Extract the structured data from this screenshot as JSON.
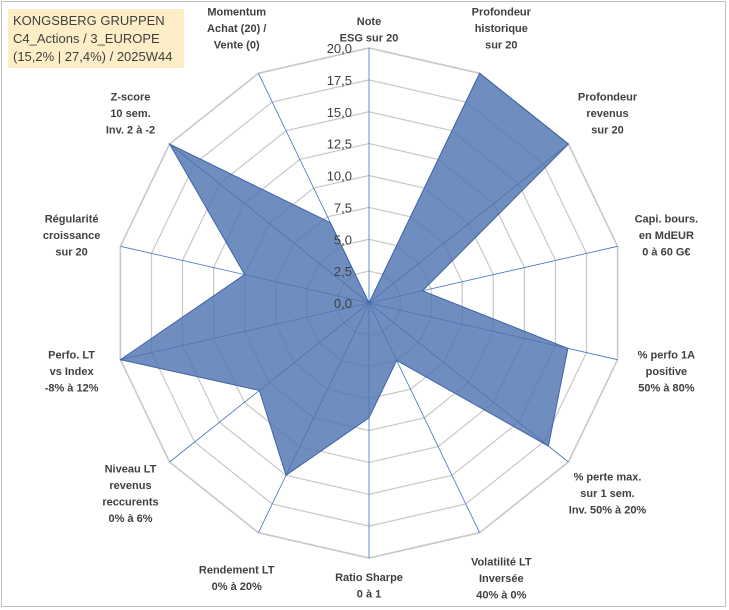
{
  "info": {
    "line1": "KONGSBERG GRUPPEN",
    "line2": "C4_Actions / 3_EUROPE",
    "line3": "(15,2% | 27,4%) / 2025W44"
  },
  "colors": {
    "fill": "#4f74b0",
    "stroke": "#3f65a8",
    "grid": "#c8c8c8",
    "spoke": "#4472c4",
    "infobox": "#fdeec8"
  },
  "chart_data": {
    "type": "radar",
    "rmax": 20,
    "ticks": [
      "0,0",
      "2,5",
      "5,0",
      "7,5",
      "10,0",
      "12,5",
      "15,0",
      "17,5",
      "20,0"
    ],
    "axes": [
      {
        "label": [
          "Note",
          "ESG sur 20"
        ],
        "value": 0
      },
      {
        "label": [
          "Profondeur",
          "historique",
          "sur 20"
        ],
        "value": 20
      },
      {
        "label": [
          "Profondeur",
          "revenus",
          "sur 20"
        ],
        "value": 20
      },
      {
        "label": [
          "Capi. bours.",
          "en MdEUR",
          "0 à 60 G€"
        ],
        "value": 4.3
      },
      {
        "label": [
          "% perfo 1A",
          "positive",
          "50% à 80%"
        ],
        "value": 16
      },
      {
        "label": [
          "% perte max.",
          "sur 1 sem.",
          "Inv. 50% à 20%"
        ],
        "value": 18
      },
      {
        "label": [
          "Volatilité LT",
          "Inversée",
          "40% à 0%"
        ],
        "value": 5
      },
      {
        "label": [
          "Ratio Sharpe",
          "0 à 1"
        ],
        "value": 9
      },
      {
        "label": [
          "Rendement LT",
          "0% à 20%"
        ],
        "value": 15
      },
      {
        "label": [
          "Niveau LT",
          "revenus",
          "reccurents",
          "0% à 6%"
        ],
        "value": 11
      },
      {
        "label": [
          "Perfo. LT",
          "vs Index",
          "-8% à 12%"
        ],
        "value": 20
      },
      {
        "label": [
          "Régularité",
          "croissance",
          "sur 20"
        ],
        "value": 10
      },
      {
        "label": [
          "Z-score",
          "10 sem.",
          "Inv. 2 à -2"
        ],
        "value": 20
      },
      {
        "label": [
          "Momentum",
          "Achat (20) /",
          "Vente (0)"
        ],
        "value": 7
      }
    ]
  }
}
